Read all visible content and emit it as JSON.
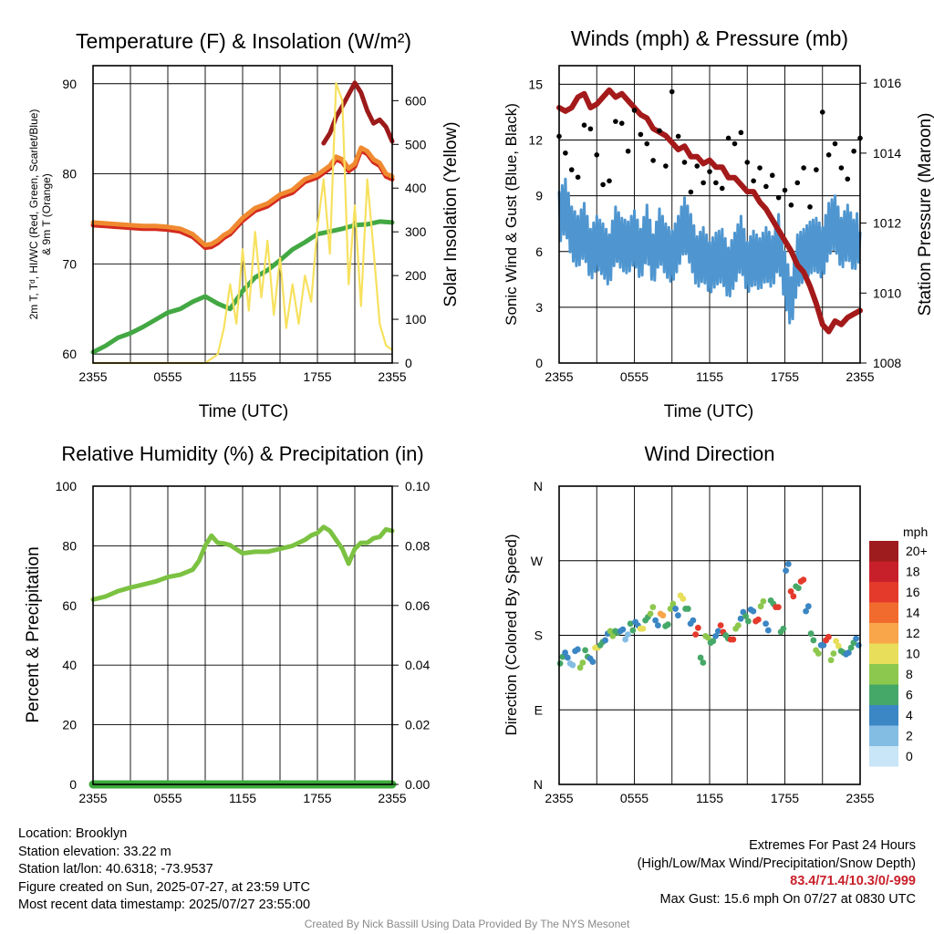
{
  "charts": {
    "temp": {
      "title": "Temperature (F) & Insolation (W/m²)",
      "ylabel_line1": "2m T, Tᵈ, HI/WC (Red, Green, Scarlet/Blue)",
      "ylabel_line2": "& 9m T (Orange)",
      "y2label": "Solar Insolation (Yellow)",
      "xlabel": "Time (UTC)"
    },
    "wind": {
      "title": "Winds (mph) & Pressure (mb)",
      "ylabel": "Sonic Wind & Gust (Blue, Black)",
      "y2label": "Station Pressure (Maroon)",
      "xlabel": "Time (UTC)"
    },
    "rh": {
      "title": "Relative Humidity (%) & Precipitation (in)",
      "ylabel": "Percent & Precipitation"
    },
    "dir": {
      "title": "Wind Direction",
      "ylabel": "Direction (Colored By Speed)",
      "colorbar_unit": "mph"
    }
  },
  "chart_data": [
    {
      "id": "temp",
      "type": "line",
      "title": "Temperature (F) & Insolation (W/m2)",
      "xlabel": "Time (UTC)",
      "ylabel": "2m T, Td, HI/WC (Red, Green, Scarlet/Blue) & 9m T (Orange)",
      "y2label": "Solar Insolation (Yellow)",
      "xticks": [
        "2355",
        "0555",
        "1155",
        "1755",
        "2355"
      ],
      "xlim": [
        0,
        24
      ],
      "ylim": [
        59,
        92
      ],
      "yticks": [
        60,
        70,
        80,
        90
      ],
      "y2lim": [
        0,
        680
      ],
      "y2ticks": [
        0,
        100,
        200,
        300,
        400,
        500,
        600
      ],
      "grid": true,
      "series": [
        {
          "axis": "left",
          "color": "#d42a1e",
          "x": [
            0,
            1,
            2,
            3,
            4,
            5,
            6,
            7,
            8,
            8.5,
            9,
            9.5,
            10,
            10.5,
            11,
            12,
            13,
            14,
            15,
            16,
            17,
            18,
            19,
            19.5,
            20,
            20.5,
            21,
            21.5,
            22,
            22.5,
            23,
            23.5,
            24
          ],
          "values": [
            74.3,
            74.2,
            74.1,
            74,
            73.9,
            73.9,
            73.8,
            73.6,
            73,
            72.4,
            71.8,
            71.9,
            72.3,
            72.9,
            73.3,
            74.8,
            75.9,
            76.4,
            77.4,
            77.9,
            79.1,
            79.6,
            80.6,
            81.6,
            81.3,
            80.3,
            80.8,
            82.6,
            82.2,
            81.3,
            80.9,
            79.7,
            79.4
          ]
        },
        {
          "axis": "left",
          "color": "#f08a30",
          "x": [
            0,
            1,
            2,
            3,
            4,
            5,
            6,
            7,
            8,
            8.5,
            9,
            9.5,
            10,
            10.5,
            11,
            12,
            13,
            14,
            15,
            16,
            17,
            18,
            19,
            19.5,
            20,
            20.5,
            21,
            21.5,
            22,
            22.5,
            23,
            23.5,
            24
          ],
          "values": [
            74.6,
            74.5,
            74.4,
            74.3,
            74.2,
            74.2,
            74.1,
            73.9,
            73.3,
            72.7,
            72.1,
            72.2,
            72.6,
            73.2,
            73.6,
            75.1,
            76.2,
            76.7,
            77.7,
            78.2,
            79.4,
            79.9,
            80.9,
            81.9,
            81.6,
            80.6,
            81.1,
            82.9,
            82.5,
            81.6,
            81.2,
            80,
            79.7
          ]
        },
        {
          "axis": "left",
          "color": "#9c1a1a",
          "x": [
            18.5,
            19,
            19.5,
            20,
            20.5,
            21,
            21.5,
            22,
            22.5,
            23,
            23.5,
            24
          ],
          "values": [
            83.4,
            84.5,
            86.3,
            87.5,
            88.8,
            90.1,
            89,
            87,
            85.6,
            86,
            85.2,
            83.6
          ]
        },
        {
          "axis": "left",
          "color": "#43a843",
          "x": [
            0,
            1,
            2,
            3,
            4,
            5,
            6,
            7,
            8,
            9,
            10,
            11,
            12,
            13,
            14,
            15,
            16,
            17,
            18,
            19,
            20,
            21,
            22,
            23,
            24
          ],
          "values": [
            60.2,
            60.9,
            61.8,
            62.3,
            63,
            63.8,
            64.6,
            65,
            65.8,
            66.4,
            65.6,
            65,
            67,
            68.5,
            69.3,
            70.4,
            71.6,
            72.4,
            73.3,
            73.6,
            73.9,
            74.3,
            74.4,
            74.7,
            74.6
          ]
        },
        {
          "axis": "right",
          "color": "#f7e15f",
          "x": [
            0,
            1,
            2,
            3,
            4,
            5,
            6,
            7,
            8,
            9,
            10,
            10.5,
            11,
            11.5,
            12,
            12.5,
            13,
            13.5,
            14,
            14.5,
            15,
            15.5,
            16,
            16.5,
            17,
            17.5,
            18,
            18.5,
            19,
            19.5,
            20,
            20.5,
            21,
            21.5,
            22,
            22.5,
            23,
            23.5,
            24
          ],
          "values": [
            0,
            0,
            0,
            0,
            0,
            0,
            0,
            0,
            0,
            0,
            20,
            80,
            180,
            90,
            260,
            120,
            300,
            150,
            280,
            110,
            240,
            80,
            180,
            90,
            200,
            140,
            310,
            420,
            250,
            640,
            600,
            180,
            360,
            130,
            420,
            260,
            90,
            40,
            30
          ]
        }
      ]
    },
    {
      "id": "wind",
      "type": "line",
      "title": "Winds (mph) & Pressure (mb)",
      "xlabel": "Time (UTC)",
      "ylabel": "Sonic Wind & Gust (Blue, Black)",
      "y2label": "Station Pressure (Maroon)",
      "xticks": [
        "2355",
        "0555",
        "1155",
        "1755",
        "2355"
      ],
      "xlim": [
        0,
        24
      ],
      "ylim": [
        0,
        16
      ],
      "yticks": [
        0,
        3,
        6,
        9,
        12,
        15
      ],
      "y2lim": [
        1008,
        1016.5
      ],
      "y2ticks": [
        1008,
        1010,
        1012,
        1014,
        1016
      ],
      "grid": true,
      "series": [
        {
          "axis": "left",
          "color": "#4f96d0",
          "name": "Sonic Wind",
          "x": [
            0,
            0.5,
            1,
            1.5,
            2,
            2.5,
            3,
            3.5,
            4,
            4.5,
            5,
            5.5,
            6,
            6.5,
            7,
            7.5,
            8,
            8.5,
            9,
            9.5,
            10,
            10.5,
            11,
            11.5,
            12,
            12.5,
            13,
            13.5,
            14,
            14.5,
            15,
            15.5,
            16,
            16.5,
            17,
            17.5,
            18,
            18.5,
            19,
            19.5,
            20,
            20.5,
            21,
            21.5,
            22,
            22.5,
            23,
            23.5,
            24
          ],
          "values": [
            7.8,
            8.5,
            7,
            6.5,
            7.2,
            5.8,
            6.5,
            6.1,
            5.5,
            7,
            6.4,
            6.2,
            6.8,
            5.8,
            7.1,
            5.5,
            6.9,
            6.1,
            5.7,
            6.5,
            7.5,
            6.6,
            5.4,
            5.9,
            5.1,
            5.6,
            5.8,
            4.8,
            5.6,
            6.5,
            5.1,
            5.7,
            5.3,
            5.9,
            5.4,
            6.6,
            4.6,
            3.2,
            5.5,
            5.8,
            6.2,
            6.4,
            5.9,
            7.2,
            7.6,
            6.4,
            7.1,
            6.3,
            7
          ]
        },
        {
          "axis": "left",
          "color": "#000000",
          "type": "scatter",
          "name": "Gust",
          "x": [
            0,
            0.5,
            1,
            1.5,
            2,
            2.5,
            3,
            3.5,
            4,
            4.5,
            5,
            5.5,
            6,
            6.5,
            7,
            7.5,
            8,
            8.5,
            9,
            9.5,
            10,
            10.5,
            11,
            11.5,
            12,
            12.5,
            13,
            13.5,
            14,
            14.5,
            15,
            15.5,
            16,
            16.5,
            17,
            17.5,
            18,
            18.5,
            19,
            19.5,
            20,
            20.5,
            21,
            21.5,
            22,
            22.5,
            23,
            23.5,
            24
          ],
          "values": [
            12.2,
            11.3,
            10.4,
            10,
            12.8,
            12.6,
            11.2,
            9.6,
            9.8,
            13,
            12.9,
            11.4,
            13.6,
            12.3,
            11.8,
            10.9,
            12.5,
            10.6,
            14.6,
            12.2,
            10.8,
            9.2,
            10.6,
            9.7,
            10.3,
            9.7,
            9.4,
            12.1,
            11.8,
            12.4,
            10.8,
            9.8,
            10.5,
            9.5,
            10.1,
            8.9,
            9.3,
            8.5,
            9.7,
            10.5,
            8.4,
            10.4,
            13.5,
            11.2,
            11.8,
            10.5,
            9.9,
            11.4,
            12.1
          ]
        },
        {
          "axis": "right",
          "color": "#a41a1a",
          "name": "Station Pressure",
          "x": [
            0,
            0.5,
            1,
            1.5,
            2,
            2.5,
            3,
            3.5,
            4,
            4.5,
            5,
            5.5,
            6,
            6.5,
            7,
            7.5,
            8,
            8.5,
            9,
            9.5,
            10,
            10.5,
            11,
            11.5,
            12,
            12.5,
            13,
            13.5,
            14,
            14.5,
            15,
            15.5,
            16,
            16.5,
            17,
            17.5,
            18,
            18.5,
            19,
            19.5,
            20,
            20.5,
            21,
            21.5,
            22,
            22.5,
            23,
            23.5,
            24
          ],
          "values": [
            1015.3,
            1015.2,
            1015.3,
            1015.6,
            1015.7,
            1015.3,
            1015.4,
            1015.6,
            1015.8,
            1015.6,
            1015.7,
            1015.5,
            1015.3,
            1015.1,
            1015,
            1014.7,
            1014.6,
            1014.5,
            1014.3,
            1014.1,
            1014.2,
            1013.9,
            1013.9,
            1013.7,
            1013.8,
            1013.6,
            1013.6,
            1013.3,
            1013.3,
            1013.1,
            1012.9,
            1012.9,
            1012.6,
            1012.4,
            1012.1,
            1011.8,
            1011.5,
            1011.2,
            1010.8,
            1010.6,
            1010.2,
            1009.7,
            1009.1,
            1008.9,
            1009.2,
            1009.1,
            1009.3,
            1009.4,
            1009.5
          ]
        }
      ]
    },
    {
      "id": "rh",
      "type": "line",
      "title": "Relative Humidity (%) & Precipitation (in)",
      "ylabel": "Percent & Precipitation",
      "xticks": [
        "2355",
        "0555",
        "1155",
        "1755",
        "2355"
      ],
      "xlim": [
        0,
        24
      ],
      "ylim": [
        0,
        100
      ],
      "yticks": [
        0,
        20,
        40,
        60,
        80,
        100
      ],
      "y2lim": [
        0,
        0.1
      ],
      "y2ticks": [
        "0.00",
        "0.02",
        "0.04",
        "0.06",
        "0.08",
        "0.10"
      ],
      "grid": true,
      "series": [
        {
          "axis": "left",
          "color": "#7cc242",
          "name": "RH",
          "x": [
            0,
            1,
            2,
            3,
            4,
            5,
            6,
            7,
            8,
            8.5,
            9,
            9.5,
            10,
            10.5,
            11,
            12,
            13,
            14,
            15,
            16,
            17,
            17.5,
            18,
            18.5,
            19,
            19.5,
            20,
            20.5,
            21,
            21.5,
            22,
            22.5,
            23,
            23.5,
            24
          ],
          "values": [
            62,
            63,
            64.8,
            66,
            67,
            68,
            69.5,
            70.3,
            72,
            75,
            80,
            83.4,
            81,
            80.8,
            80.2,
            77.5,
            78,
            78,
            79,
            80,
            82,
            83.5,
            84.3,
            86.3,
            85,
            82,
            79,
            74,
            79,
            81,
            81,
            82.5,
            83,
            85.5,
            85
          ]
        },
        {
          "axis": "right",
          "color": "#3daa3d",
          "name": "Precipitation",
          "x": [
            0,
            24
          ],
          "values": [
            0,
            0
          ]
        }
      ]
    },
    {
      "id": "dir",
      "type": "scatter",
      "title": "Wind Direction",
      "ylabel": "Direction (Colored By Speed)",
      "xticks": [
        "2355",
        "0555",
        "1155",
        "1755",
        "2355"
      ],
      "xlim": [
        0,
        24
      ],
      "ylim": [
        0,
        360
      ],
      "yticks": [
        "N",
        "E",
        "S",
        "W",
        "N"
      ],
      "grid": true,
      "colorbar": {
        "unit": "mph",
        "labels": [
          "20+",
          "18",
          "16",
          "14",
          "12",
          "10",
          "8",
          "6",
          "4",
          "2",
          "0"
        ],
        "colors": [
          "#9e1c1e",
          "#c8202a",
          "#e43a2c",
          "#f26b2e",
          "#f9a64a",
          "#e8de5a",
          "#8dc84e",
          "#46a868",
          "#3b86c4",
          "#84bde4",
          "#c8e6f7"
        ]
      },
      "x": [
        0.2,
        0.6,
        1,
        1.4,
        1.8,
        2.2,
        2.6,
        3,
        3.4,
        3.8,
        4.2,
        4.6,
        5,
        5.4,
        5.8,
        6.2,
        6.6,
        7,
        7.4,
        7.8,
        8.2,
        8.6,
        9,
        9.4,
        9.8,
        10.2,
        10.6,
        11,
        11.4,
        11.8,
        12.2,
        12.6,
        13,
        13.4,
        13.8,
        14.2,
        14.6,
        15,
        15.4,
        15.8,
        16.2,
        16.6,
        17,
        17.4,
        17.8,
        18.2,
        18.6,
        19,
        19.4,
        19.8,
        20.2,
        20.6,
        21,
        21.4,
        21.8,
        22.2,
        22.6,
        23,
        23.4,
        23.8
      ],
      "values": [
        150,
        156,
        145,
        162,
        144,
        158,
        150,
        165,
        170,
        178,
        182,
        184,
        186,
        178,
        190,
        194,
        188,
        200,
        210,
        195,
        205,
        192,
        215,
        208,
        226,
        212,
        196,
        185,
        150,
        178,
        172,
        182,
        188,
        178,
        175,
        190,
        204,
        200,
        210,
        198,
        218,
        190,
        220,
        214,
        186,
        262,
        230,
        238,
        246,
        212,
        178,
        160,
        168,
        176,
        154,
        170,
        160,
        158,
        168,
        172
      ],
      "colors": [
        3,
        2,
        1,
        2,
        4,
        3,
        2,
        5,
        3,
        2,
        4,
        3,
        2,
        1,
        3,
        2,
        5,
        3,
        4,
        2,
        6,
        3,
        4,
        2,
        5,
        3,
        2,
        8,
        3,
        4,
        3,
        2,
        8,
        3,
        8,
        4,
        2,
        3,
        2,
        8,
        4,
        2,
        3,
        8,
        3,
        2,
        8,
        3,
        8,
        2,
        3,
        4,
        2,
        8,
        4,
        5,
        3,
        2,
        3,
        2
      ]
    }
  ],
  "footer": {
    "location": "Location: Brooklyn",
    "elevation": "Station elevation: 33.22 m",
    "latlon": "Station lat/lon: 40.6318; -73.9537",
    "created": "Figure created on Sun, 2025-07-27, at 23:59 UTC",
    "recent": "Most recent data timestamp: 2025/07/27 23:55:00",
    "extremes_title": "Extremes For Past 24 Hours",
    "extremes_desc": "(High/Low/Max Wind/Precipitation/Snow Depth)",
    "extremes_values": "83.4/71.4/10.3/0/-999",
    "max_gust": "Max Gust: 15.6 mph On 07/27 at 0830 UTC",
    "credit": "Created By Nick Bassill Using Data Provided By The NYS Mesonet"
  }
}
